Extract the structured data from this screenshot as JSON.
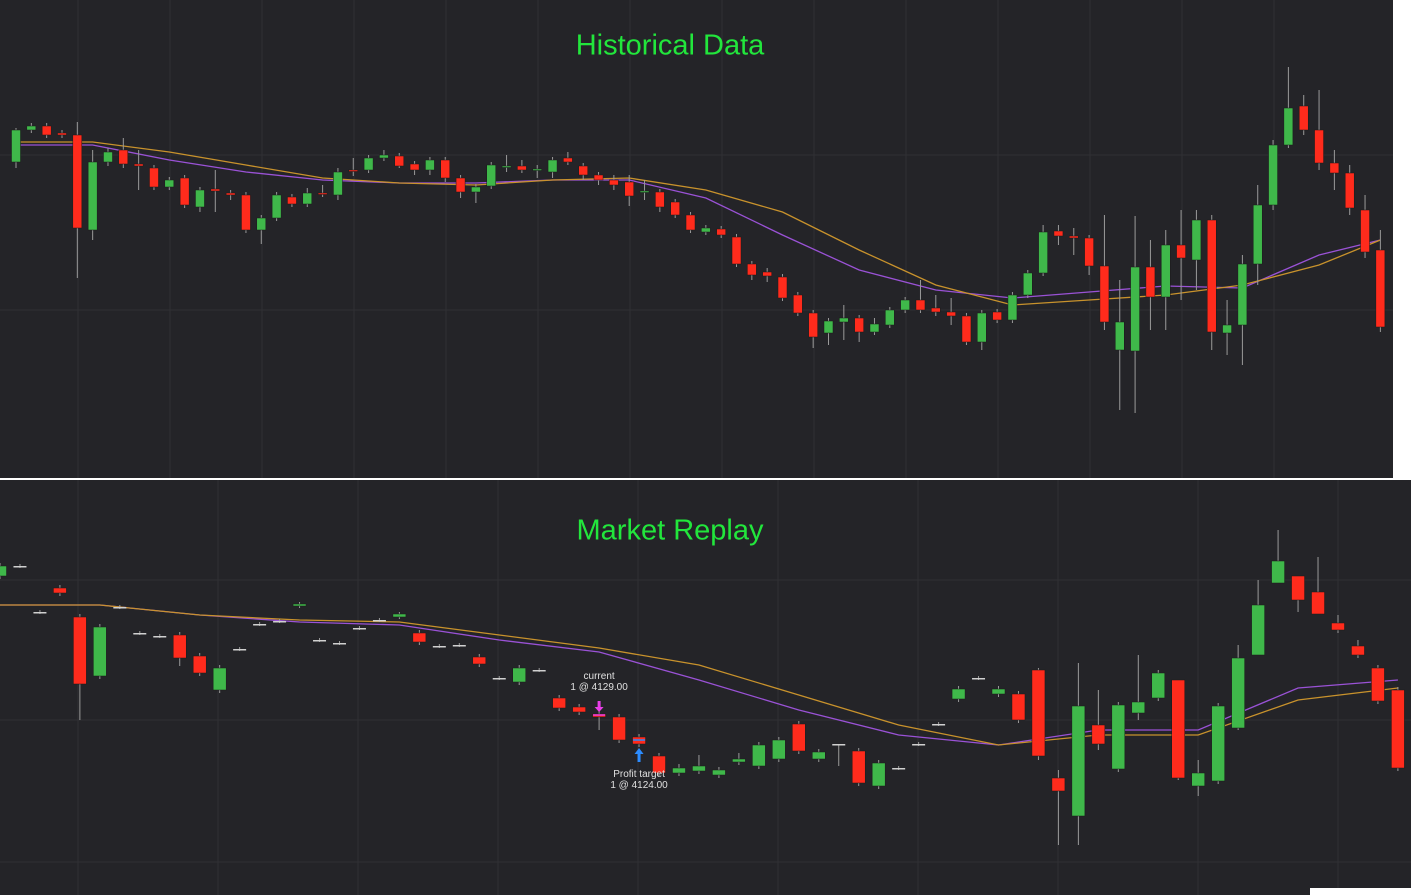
{
  "chart_data": [
    {
      "type": "candlestick",
      "title": "Historical Data",
      "up_color": "#3fb84a",
      "down_color": "#ff2b1c",
      "flat_color": "#d0d0d0",
      "ylim": [
        4080.4,
        4176
      ],
      "ohlc": [
        [
          4143.6,
          4150.4,
          4142.4,
          4150
        ],
        [
          4150,
          4151.4,
          4149.4,
          4150.8
        ],
        [
          4150.8,
          4151.4,
          4148.4,
          4149
        ],
        [
          4149.4,
          4150,
          4148.4,
          4149
        ],
        [
          4149,
          4151.6,
          4120.4,
          4130.4
        ],
        [
          4130,
          4146,
          4128,
          4143.6
        ],
        [
          4143.6,
          4146.4,
          4142.8,
          4145.6
        ],
        [
          4146,
          4148.4,
          4142.4,
          4143.2
        ],
        [
          4143.2,
          4146,
          4138,
          4142.8
        ],
        [
          4142.4,
          4143,
          4138,
          4138.6
        ],
        [
          4138.6,
          4140.6,
          4138,
          4140
        ],
        [
          4140.4,
          4141,
          4134.4,
          4135
        ],
        [
          4134.6,
          4138.6,
          4133.6,
          4138
        ],
        [
          4138.2,
          4142,
          4133.6,
          4137.8
        ],
        [
          4137.4,
          4138,
          4136,
          4137
        ],
        [
          4137,
          4137.6,
          4129.4,
          4130
        ],
        [
          4130,
          4133,
          4127.2,
          4132.4
        ],
        [
          4132.4,
          4137.6,
          4131.8,
          4137
        ],
        [
          4136.6,
          4137.2,
          4134.6,
          4135.2
        ],
        [
          4135.2,
          4138.4,
          4134.6,
          4137.4
        ],
        [
          4137.4,
          4139,
          4136.6,
          4137.2
        ],
        [
          4137,
          4142.4,
          4136,
          4141.6
        ],
        [
          4142,
          4144.4,
          4140.8,
          4141.8
        ],
        [
          4142,
          4145,
          4141.4,
          4144.4
        ],
        [
          4144.4,
          4146,
          4143.8,
          4145
        ],
        [
          4144.8,
          4145.4,
          4142.4,
          4142.8
        ],
        [
          4143.2,
          4143.8,
          4141,
          4142
        ],
        [
          4142,
          4144.6,
          4141,
          4144
        ],
        [
          4144,
          4144.6,
          4139.6,
          4140.4
        ],
        [
          4140.4,
          4141,
          4136.4,
          4137.6
        ],
        [
          4137.6,
          4139.2,
          4135.4,
          4138.6
        ],
        [
          4138.8,
          4143.6,
          4138.2,
          4143
        ],
        [
          4142.6,
          4145,
          4141.6,
          4142.8
        ],
        [
          4142.8,
          4144,
          4141.4,
          4142
        ],
        [
          4142,
          4143,
          4140.4,
          4142.2
        ],
        [
          4141.6,
          4144.6,
          4140.4,
          4144
        ],
        [
          4144.4,
          4145.6,
          4143,
          4143.6
        ],
        [
          4142.8,
          4143.4,
          4140,
          4141
        ],
        [
          4141,
          4141.6,
          4139,
          4140
        ],
        [
          4140,
          4141,
          4138,
          4139
        ],
        [
          4139.6,
          4141,
          4134.8,
          4136.8
        ],
        [
          4137.6,
          4140,
          4136,
          4137.8
        ],
        [
          4137.6,
          4138.2,
          4133.6,
          4134.6
        ],
        [
          4135.6,
          4136.2,
          4132.4,
          4133
        ],
        [
          4133,
          4133.6,
          4129.4,
          4130
        ],
        [
          4129.6,
          4131,
          4129,
          4130.4
        ],
        [
          4130.2,
          4130.8,
          4128.4,
          4129
        ],
        [
          4128.6,
          4129.2,
          4122.6,
          4123.2
        ],
        [
          4123.2,
          4123.8,
          4120,
          4121
        ],
        [
          4121.6,
          4122.4,
          4119.6,
          4120.8
        ],
        [
          4120.6,
          4121.2,
          4115.8,
          4116.4
        ],
        [
          4117,
          4117.6,
          4112.8,
          4113.4
        ],
        [
          4113.4,
          4114,
          4106.4,
          4108.6
        ],
        [
          4109.4,
          4112.4,
          4107,
          4111.8
        ],
        [
          4111.6,
          4115,
          4108,
          4112.4
        ],
        [
          4112.4,
          4113,
          4107.6,
          4109.6
        ],
        [
          4109.6,
          4112.4,
          4109,
          4111.2
        ],
        [
          4111,
          4114.6,
          4110.4,
          4114
        ],
        [
          4114,
          4116.6,
          4113.4,
          4116
        ],
        [
          4116,
          4120,
          4113.4,
          4114
        ],
        [
          4114.4,
          4117,
          4112.8,
          4113.6
        ],
        [
          4113.6,
          4116.4,
          4111,
          4112.8
        ],
        [
          4112.8,
          4113.4,
          4107,
          4107.6
        ],
        [
          4107.6,
          4114,
          4106,
          4113.4
        ],
        [
          4113.6,
          4114.2,
          4111.4,
          4112
        ],
        [
          4112,
          4117.6,
          4111.4,
          4117
        ],
        [
          4117,
          4122,
          4116.4,
          4121.4
        ],
        [
          4121.4,
          4131,
          4120.8,
          4129.6
        ],
        [
          4129.8,
          4131,
          4127,
          4128.8
        ],
        [
          4128.8,
          4130.4,
          4125,
          4128.4
        ],
        [
          4128.4,
          4129,
          4121,
          4122.8
        ],
        [
          4122.8,
          4133,
          4110,
          4111.6
        ],
        [
          4106,
          4120,
          4094,
          4111.6
        ],
        [
          4105.8,
          4132.8,
          4093.4,
          4122.6
        ],
        [
          4122.6,
          4128,
          4110,
          4116.6
        ],
        [
          4116.6,
          4130,
          4110,
          4127
        ],
        [
          4127,
          4134,
          4116,
          4124.4
        ],
        [
          4124,
          4134,
          4118,
          4132
        ],
        [
          4132,
          4133,
          4106,
          4109.6
        ],
        [
          4109.4,
          4116,
          4105,
          4111
        ],
        [
          4111,
          4125,
          4103,
          4123.2
        ],
        [
          4123.2,
          4139,
          4119,
          4135
        ],
        [
          4135,
          4148,
          4134,
          4147
        ],
        [
          4147,
          4162.6,
          4146.4,
          4154.4
        ],
        [
          4154.8,
          4157,
          4149,
          4150
        ],
        [
          4150,
          4158,
          4142,
          4143.4
        ],
        [
          4143.4,
          4146,
          4138,
          4141.4
        ],
        [
          4141.4,
          4143,
          4133,
          4134.4
        ],
        [
          4134,
          4137,
          4124.4,
          4125.6
        ],
        [
          4126,
          4130,
          4109.6,
          4110.6
        ]
      ],
      "series": [
        {
          "color": "#9a52d6",
          "x": [
            0,
            5,
            10,
            15,
            20,
            25,
            30,
            35,
            40,
            45,
            50,
            55,
            60,
            65,
            70,
            75,
            80,
            85,
            89
          ],
          "values": [
            4147,
            4147,
            4144,
            4141.6,
            4140,
            4139.4,
            4139.4,
            4140,
            4140,
            4136.4,
            4129,
            4122,
            4118,
            4116.4,
            4117.6,
            4118.8,
            4118.4,
            4125,
            4128
          ]
        },
        {
          "color": "#c8922c",
          "x": [
            0,
            5,
            10,
            15,
            20,
            25,
            30,
            35,
            40,
            45,
            50,
            55,
            60,
            65,
            70,
            75,
            80,
            85,
            89
          ],
          "values": [
            4147.6,
            4147.6,
            4145.6,
            4143,
            4140.4,
            4139.4,
            4139,
            4140,
            4140.4,
            4138,
            4133.6,
            4126,
            4119,
            4115,
            4116,
            4117,
            4119,
            4123,
            4128
          ]
        }
      ]
    },
    {
      "type": "candlestick",
      "title": "Market Replay",
      "up_color": "#3fb84a",
      "down_color": "#ff2b1c",
      "flat_color": "#d0d0d0",
      "ylim": [
        4093,
        4176
      ],
      "ohlc": [
        [
          4156.8,
          4159.4,
          4156.2,
          4158.8
        ],
        [
          4158.8,
          4159.2,
          4158.4,
          4158.8
        ],
        [
          4149.6,
          4150,
          4149.2,
          4149.6
        ],
        [
          4154.4,
          4155,
          4152.8,
          4153.4
        ],
        [
          4148.6,
          4149.2,
          4128,
          4135.2
        ],
        [
          4136.8,
          4147.2,
          4136.2,
          4146.6
        ],
        [
          4150.6,
          4151,
          4150.2,
          4150.6
        ],
        [
          4145.4,
          4145.8,
          4145,
          4145.4
        ],
        [
          4144.8,
          4145.2,
          4144.4,
          4144.8
        ],
        [
          4145,
          4145.6,
          4138.8,
          4140.4
        ],
        [
          4140.8,
          4141.4,
          4136.8,
          4137.4
        ],
        [
          4134,
          4139,
          4133.4,
          4138.4
        ],
        [
          4142.2,
          4142.6,
          4141.8,
          4142.2
        ],
        [
          4147.2,
          4147.6,
          4146.8,
          4147.2
        ],
        [
          4147.8,
          4148.2,
          4147.4,
          4147.8
        ],
        [
          4150.8,
          4151.6,
          4150.4,
          4151.2
        ],
        [
          4144,
          4144.4,
          4143.6,
          4144
        ],
        [
          4143.4,
          4143.8,
          4143,
          4143.4
        ],
        [
          4146.4,
          4146.8,
          4146,
          4146.4
        ],
        [
          4148,
          4148.4,
          4147.6,
          4148
        ],
        [
          4148.6,
          4149.6,
          4148.2,
          4149.2
        ],
        [
          4145.4,
          4146,
          4143,
          4143.6
        ],
        [
          4142.8,
          4143.2,
          4142.4,
          4142.8
        ],
        [
          4143,
          4143.4,
          4142.6,
          4143
        ],
        [
          4140.6,
          4141.2,
          4138.6,
          4139.2
        ],
        [
          4136.4,
          4136.8,
          4136,
          4136.4
        ],
        [
          4135.6,
          4139,
          4135,
          4138.4
        ],
        [
          4138,
          4138.4,
          4137.6,
          4138
        ],
        [
          4132.4,
          4133,
          4129.8,
          4130.4
        ],
        [
          4130.6,
          4131.2,
          4129,
          4129.6
        ],
        [
          4129.2,
          4129.8,
          4126,
          4128.6
        ],
        [
          4128.6,
          4129.2,
          4123.4,
          4124
        ],
        [
          4124.6,
          4125.2,
          4122.6,
          4123.2
        ],
        [
          4120.8,
          4121.4,
          4116.8,
          4117.4
        ],
        [
          4117.4,
          4119.2,
          4116.8,
          4118.4
        ],
        [
          4117.8,
          4121,
          4117.2,
          4118.8
        ],
        [
          4117,
          4118.6,
          4116.4,
          4118
        ],
        [
          4119.6,
          4121.4,
          4119,
          4120.2
        ],
        [
          4118.8,
          4123.6,
          4118.2,
          4123
        ],
        [
          4120.2,
          4124.6,
          4119.6,
          4124
        ],
        [
          4127.2,
          4127.8,
          4121.2,
          4121.8
        ],
        [
          4120.2,
          4122.2,
          4119.6,
          4121.6
        ],
        [
          4123.2,
          4123.2,
          4118.8,
          4123.2
        ],
        [
          4121.8,
          4122.4,
          4114.8,
          4115.4
        ],
        [
          4114.8,
          4120,
          4114.2,
          4119.4
        ],
        [
          4118.4,
          4118.8,
          4118,
          4118.4
        ],
        [
          4123.2,
          4123.6,
          4122.8,
          4123.2
        ],
        [
          4127.2,
          4127.6,
          4126.8,
          4127.2
        ],
        [
          4132.2,
          4134.8,
          4131.6,
          4134.2
        ],
        [
          4136.4,
          4136.8,
          4136,
          4136.4
        ],
        [
          4133.2,
          4134.8,
          4132.6,
          4134.2
        ],
        [
          4133.2,
          4133.8,
          4127.4,
          4128
        ],
        [
          4138,
          4138.4,
          4120,
          4120.8
        ],
        [
          4116.4,
          4118,
          4103,
          4113.8
        ],
        [
          4108.8,
          4139.4,
          4103,
          4130.8
        ],
        [
          4127,
          4134,
          4122,
          4123.2
        ],
        [
          4118.2,
          4131.6,
          4117.6,
          4131
        ],
        [
          4129.4,
          4141,
          4128,
          4131.6
        ],
        [
          4132.4,
          4138,
          4131.8,
          4137.4
        ],
        [
          4136,
          4136,
          4116,
          4116.4
        ],
        [
          4114.8,
          4120,
          4112.8,
          4117.4
        ],
        [
          4115.8,
          4131.4,
          4115.2,
          4130.8
        ],
        [
          4126.4,
          4143,
          4126,
          4140.4
        ],
        [
          4141,
          4156,
          4141,
          4151
        ],
        [
          4155.4,
          4166,
          4155.4,
          4159.8
        ],
        [
          4156.8,
          4156.8,
          4149.6,
          4152
        ],
        [
          4153.6,
          4160.6,
          4149.2,
          4149.2
        ],
        [
          4147.4,
          4149,
          4145.4,
          4146
        ],
        [
          4142.8,
          4144,
          4140.4,
          4141
        ],
        [
          4138.4,
          4139,
          4131.2,
          4131.8
        ],
        [
          4134,
          4134.6,
          4117.8,
          4118.4
        ]
      ],
      "series": [
        {
          "color": "#9a52d6",
          "x": [
            0,
            5,
            10,
            15,
            20,
            25,
            30,
            35,
            40,
            45,
            50,
            55,
            60,
            65,
            70
          ],
          "values": [
            4151,
            4151,
            4149,
            4147.6,
            4147,
            4144,
            4141.6,
            4136,
            4130,
            4125,
            4123,
            4126,
            4126,
            4134.4,
            4136
          ]
        },
        {
          "color": "#c8922c",
          "x": [
            0,
            5,
            10,
            15,
            20,
            25,
            30,
            35,
            40,
            45,
            50,
            55,
            60,
            65,
            70
          ],
          "values": [
            4151,
            4151,
            4149,
            4148,
            4147.6,
            4145,
            4142.4,
            4139,
            4133,
            4127,
            4123,
            4125,
            4125,
            4132,
            4134.4
          ]
        }
      ],
      "annotations": [
        {
          "label": "current",
          "text": "1 @ 4129.00",
          "value": 4129,
          "x": 30
        },
        {
          "label": "Profit target",
          "text": "1 @ 4124.00",
          "value": 4124,
          "x": 32
        }
      ]
    }
  ]
}
